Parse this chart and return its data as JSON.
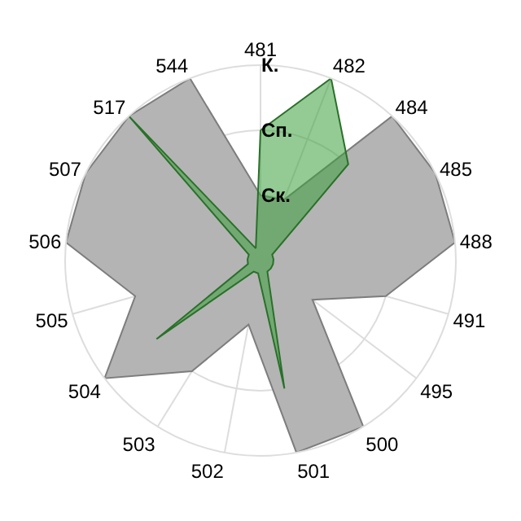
{
  "chart_data": {
    "type": "radar",
    "categories": [
      "481",
      "482",
      "484",
      "485",
      "488",
      "491",
      "495",
      "500",
      "501",
      "502",
      "503",
      "504",
      "505",
      "506",
      "507",
      "517",
      "544"
    ],
    "series": [
      {
        "color": "#b4b4b4",
        "values": [
          1,
          1,
          3,
          3,
          3,
          2,
          1,
          3,
          3,
          1,
          2,
          3,
          2,
          3,
          3,
          3,
          3
        ]
      },
      {
        "color": "#3ca03c",
        "values": [
          2,
          3,
          2,
          0.2,
          0.2,
          0.2,
          0.2,
          0.2,
          2,
          0.2,
          0.2,
          2,
          0.2,
          0.2,
          0.2,
          3,
          0.2
        ]
      }
    ],
    "ylim": [
      0,
      3
    ],
    "yticks": [
      {
        "value": 1,
        "label": "Ск."
      },
      {
        "value": 2,
        "label": "Сп."
      },
      {
        "value": 3,
        "label": "К."
      }
    ],
    "grid": true,
    "marker": "none"
  }
}
